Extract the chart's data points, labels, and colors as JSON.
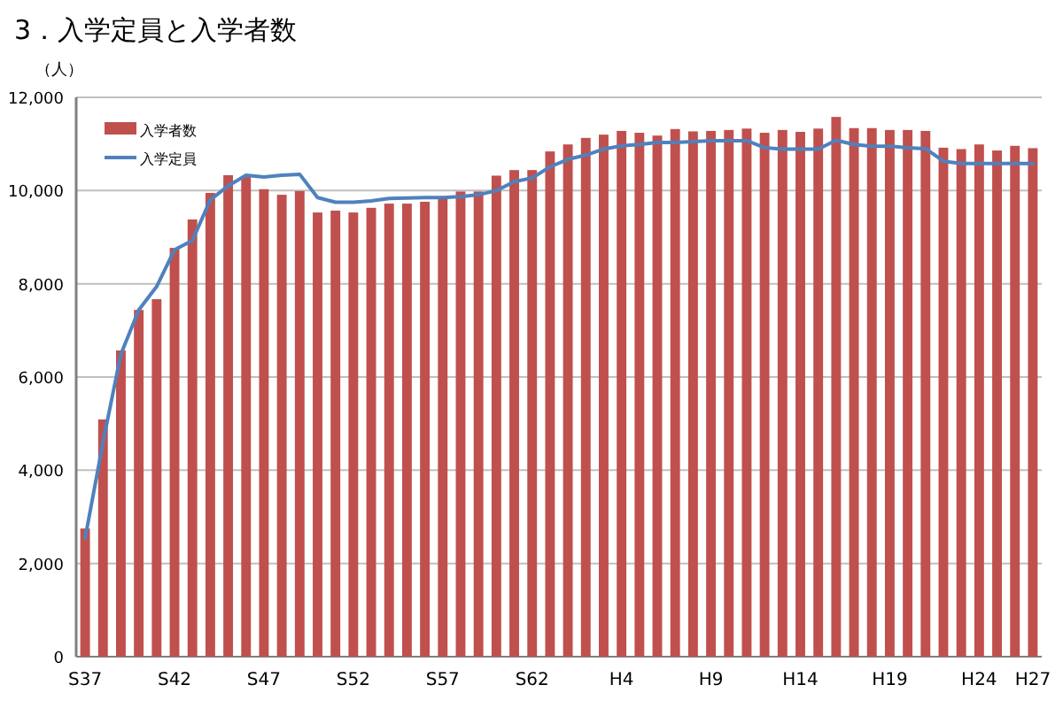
{
  "chart_data": {
    "type": "bar",
    "title": "3．入学定員と入学者数",
    "ylabel": "（人）",
    "categories": [
      "S37",
      null,
      null,
      null,
      null,
      "S42",
      null,
      null,
      null,
      null,
      "S47",
      null,
      null,
      null,
      null,
      "S52",
      null,
      null,
      null,
      null,
      "S57",
      null,
      null,
      null,
      null,
      "S62",
      null,
      null,
      null,
      null,
      "H4",
      null,
      null,
      null,
      null,
      "H9",
      null,
      null,
      null,
      null,
      "H14",
      null,
      null,
      null,
      null,
      "H19",
      null,
      null,
      null,
      null,
      "H24",
      null,
      null,
      "H27"
    ],
    "series": [
      {
        "name": "入学者数",
        "color": "#c0504d",
        "values": [
          2750,
          5090,
          6570,
          7440,
          7670,
          8770,
          9380,
          9950,
          10330,
          10290,
          10030,
          9910,
          9990,
          9530,
          9570,
          9530,
          9630,
          9720,
          9720,
          9760,
          9830,
          9980,
          9980,
          10320,
          10440,
          10440,
          10840,
          10990,
          11130,
          11200,
          11280,
          11240,
          11180,
          11320,
          11270,
          11280,
          11300,
          11330,
          11240,
          11300,
          11260,
          11330,
          11580,
          11340,
          11340,
          11300,
          11300,
          11280,
          10920,
          10890,
          10990,
          10860,
          10960,
          10910
        ]
      },
      {
        "name": "入学定員",
        "type": "line",
        "color": "#4f81bd",
        "values": [
          2540,
          4600,
          6490,
          7440,
          7940,
          8730,
          8930,
          9800,
          10100,
          10330,
          10290,
          10330,
          10350,
          9850,
          9750,
          9750,
          9780,
          9830,
          9840,
          9850,
          9850,
          9870,
          9910,
          10000,
          10190,
          10270,
          10510,
          10670,
          10760,
          10890,
          10960,
          10990,
          11030,
          11030,
          11050,
          11070,
          11070,
          11070,
          10920,
          10890,
          10890,
          10890,
          11080,
          10990,
          10950,
          10950,
          10920,
          10900,
          10630,
          10580,
          10580,
          10580,
          10580,
          10580
        ]
      }
    ],
    "ylim": [
      0,
      12000
    ],
    "yticks": [
      {
        "value": 0,
        "label": "0"
      },
      {
        "value": 2000,
        "label": "2,000"
      },
      {
        "value": 4000,
        "label": "4,000"
      },
      {
        "value": 6000,
        "label": "6,000"
      },
      {
        "value": 8000,
        "label": "8,000"
      },
      {
        "value": 10000,
        "label": "10,000"
      },
      {
        "value": 12000,
        "label": "12,000"
      }
    ],
    "grid": "y",
    "legend": "top left",
    "marker": "none",
    "line_style": "solid"
  }
}
